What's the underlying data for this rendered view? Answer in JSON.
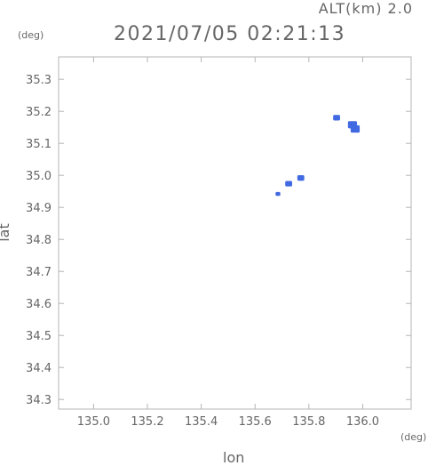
{
  "header": {
    "alt_label": "ALT(km) 2.0",
    "datetime": "2021/07/05 02:21:13"
  },
  "chart_data": {
    "type": "scatter",
    "xlabel": "lon",
    "ylabel": "lat",
    "x_unit": "(deg)",
    "y_unit": "(deg)",
    "xlim": [
      134.87,
      136.18
    ],
    "ylim": [
      34.27,
      35.37
    ],
    "xticks": [
      135.0,
      135.2,
      135.4,
      135.6,
      135.8,
      136.0
    ],
    "xtick_labels": [
      "135.0",
      "135.2",
      "135.4",
      "135.6",
      "135.8",
      "136.0"
    ],
    "yticks": [
      34.3,
      34.4,
      34.5,
      34.6,
      34.7,
      34.8,
      34.9,
      35.0,
      35.1,
      35.2,
      35.3
    ],
    "ytick_labels": [
      "34.3",
      "34.4",
      "34.5",
      "34.6",
      "34.7",
      "34.8",
      "34.9",
      "35.0",
      "35.1",
      "35.2",
      "35.3"
    ],
    "grid": false,
    "point_color": "#4169e1",
    "points": [
      {
        "lon": 135.685,
        "lat": 34.942,
        "size": 1
      },
      {
        "lon": 135.725,
        "lat": 34.974,
        "size": 2
      },
      {
        "lon": 135.77,
        "lat": 34.992,
        "size": 2
      },
      {
        "lon": 135.903,
        "lat": 35.18,
        "size": 2
      },
      {
        "lon": 135.962,
        "lat": 35.158,
        "size": 3
      },
      {
        "lon": 135.972,
        "lat": 35.145,
        "size": 3
      }
    ]
  }
}
